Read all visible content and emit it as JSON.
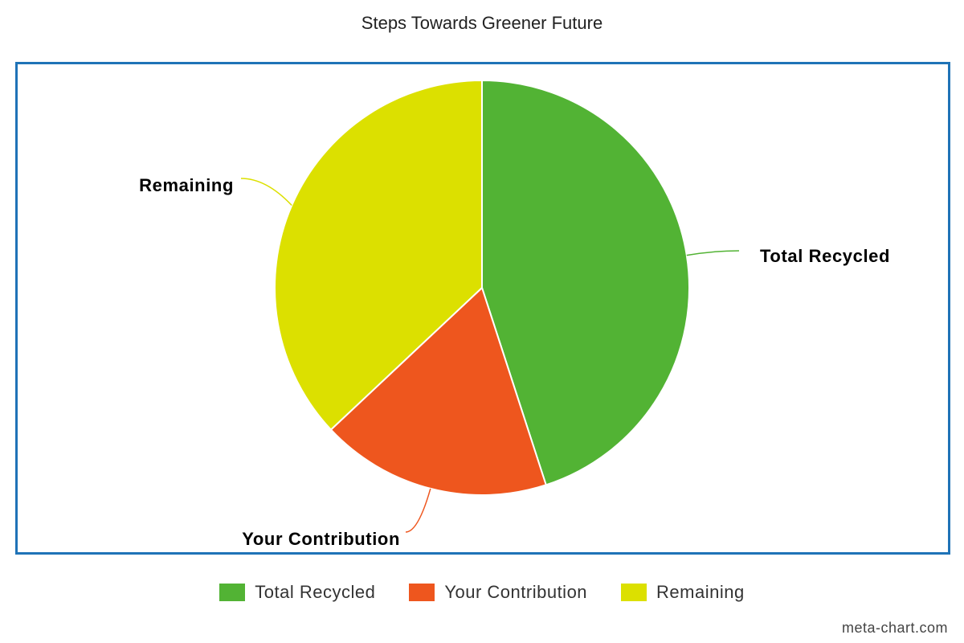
{
  "chart_data": {
    "type": "pie",
    "title": "Steps Towards Greener Future",
    "categories": [
      "Total Recycled",
      "Your Contribution",
      "Remaining"
    ],
    "values": [
      45,
      18,
      37
    ],
    "colors": [
      "#52b334",
      "#ee561e",
      "#dce000"
    ],
    "legend": {
      "placement": "bottom",
      "items": [
        "Total Recycled",
        "Your Contribution",
        "Remaining"
      ]
    },
    "credit": "meta-chart.com"
  }
}
